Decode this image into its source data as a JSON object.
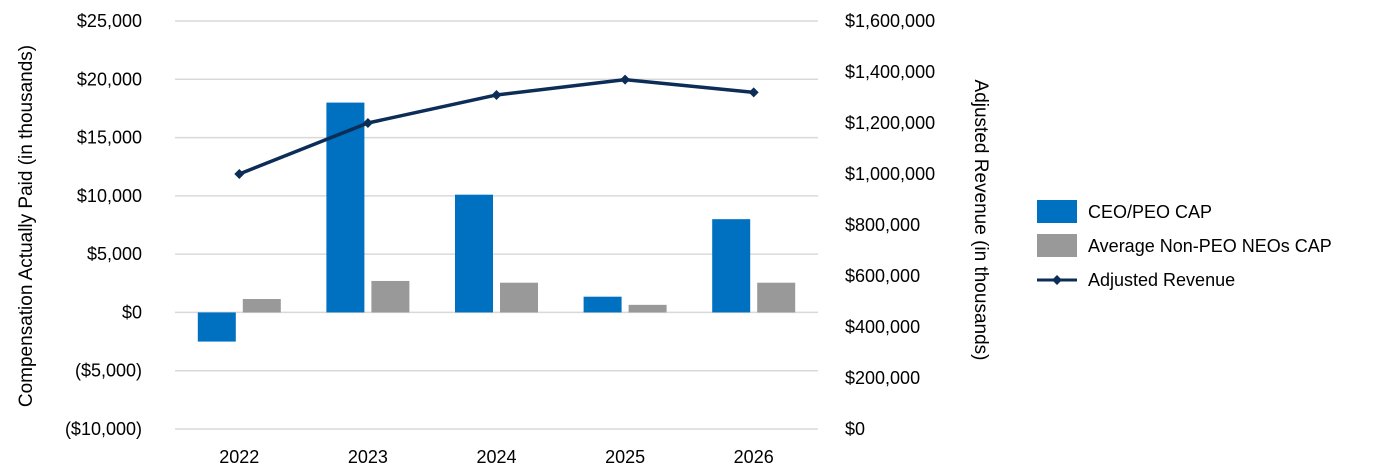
{
  "chart_data": {
    "type": "bar",
    "categories": [
      "2022",
      "2023",
      "2024",
      "2025",
      "2026"
    ],
    "y_left": {
      "label": "Compensation Actually Paid (in thousands)",
      "range": [
        -10000,
        25000
      ],
      "ticks": [
        -10000,
        -5000,
        0,
        5000,
        10000,
        15000,
        20000,
        25000
      ],
      "tick_labels": [
        "($10,000)",
        "($5,000)",
        "$0",
        "$5,000",
        "$10,000",
        "$15,000",
        "$20,000",
        "$25,000"
      ]
    },
    "y_right": {
      "label": "Adjusted Revenue (in thousands)",
      "range": [
        0,
        1600000
      ],
      "ticks": [
        0,
        200000,
        400000,
        600000,
        800000,
        1000000,
        1200000,
        1400000,
        1600000
      ],
      "tick_labels": [
        "$0",
        "$200,000",
        "$400,000",
        "$600,000",
        "$800,000",
        "$1,000,000",
        "$1,200,000",
        "$1,400,000",
        "$1,600,000"
      ]
    },
    "series": [
      {
        "name": "CEO/PEO CAP",
        "type": "bar",
        "axis": "left",
        "color": "#0070c0",
        "values": [
          -2500,
          18000,
          10100,
          1350,
          8000
        ]
      },
      {
        "name": "Average Non-PEO NEOs CAP",
        "type": "bar",
        "axis": "left",
        "color": "#999999",
        "values": [
          1150,
          2700,
          2550,
          650,
          2550
        ]
      },
      {
        "name": "Adjusted Revenue",
        "type": "line",
        "axis": "right",
        "color": "#0c2d57",
        "marker": "diamond",
        "values": [
          1000000,
          1200000,
          1310000,
          1370000,
          1320000
        ]
      }
    ],
    "grid": true,
    "legend_position": "right"
  }
}
